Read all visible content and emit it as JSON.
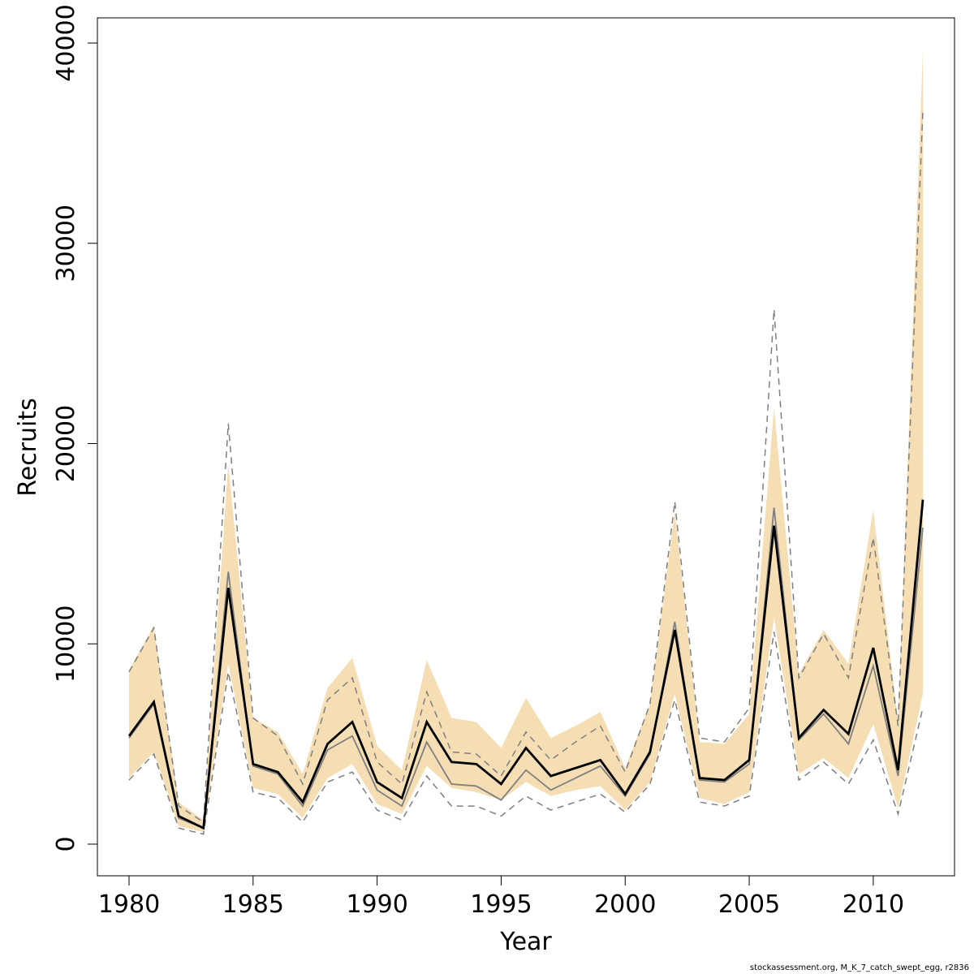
{
  "chart_data": {
    "type": "line",
    "xlabel": "Year",
    "ylabel": "Recruits",
    "xlim": [
      1979,
      2013.5
    ],
    "ylim": [
      -1600,
      41300
    ],
    "x_ticks": [
      1980,
      1985,
      1990,
      1995,
      2000,
      2005,
      2010
    ],
    "x_tick_labels": [
      "1980",
      "1985",
      "1990",
      "1995",
      "2000",
      "2005",
      "2010"
    ],
    "y_ticks": [
      0,
      10000,
      20000,
      30000,
      40000
    ],
    "y_tick_labels": [
      "0",
      "10000",
      "20000",
      "30000",
      "40000"
    ],
    "grid": false,
    "colors": {
      "band": "#f5deb3",
      "main_line": "#000000",
      "secondary_line": "#7f7f7f",
      "dashed_lines": "#7f7f7f",
      "frame": "#000000"
    },
    "x": [
      1980,
      1981,
      1982,
      1983,
      1984,
      1985,
      1986,
      1987,
      1988,
      1989,
      1990,
      1991,
      1992,
      1993,
      1994,
      1995,
      1996,
      1997,
      1998,
      1999,
      2000,
      2001,
      2002,
      2003,
      2004,
      2005,
      2006,
      2007,
      2008,
      2009,
      2010,
      2011,
      2012
    ],
    "series": [
      {
        "role": "band_upper",
        "values": [
          8700,
          10900,
          2100,
          1200,
          19000,
          6300,
          5600,
          3500,
          7800,
          9300,
          4900,
          3700,
          9200,
          6300,
          6100,
          4800,
          7300,
          5300,
          5900,
          6600,
          3800,
          7000,
          16600,
          5100,
          5000,
          6500,
          21800,
          8500,
          10700,
          9000,
          16700,
          6100,
          39600
        ]
      },
      {
        "role": "band_lower",
        "values": [
          3300,
          4600,
          900,
          600,
          9000,
          2800,
          2500,
          1300,
          3300,
          4000,
          2000,
          1500,
          3900,
          2800,
          2600,
          2200,
          3100,
          2400,
          2700,
          2900,
          1700,
          3100,
          7500,
          2300,
          2000,
          2600,
          11300,
          3500,
          4300,
          3300,
          6000,
          1800,
          7500
        ]
      },
      {
        "role": "dashed_upper",
        "values": [
          8600,
          10800,
          1900,
          1100,
          21000,
          6300,
          5400,
          3000,
          7200,
          8300,
          4100,
          3000,
          7600,
          4600,
          4500,
          3400,
          5600,
          4200,
          5100,
          5900,
          3600,
          7000,
          17100,
          5300,
          5100,
          6800,
          26700,
          8300,
          10500,
          8300,
          15300,
          5900,
          36600
        ]
      },
      {
        "role": "dashed_lower",
        "values": [
          3200,
          4500,
          800,
          500,
          8600,
          2600,
          2300,
          1100,
          3100,
          3600,
          1700,
          1200,
          3400,
          1900,
          1900,
          1400,
          2400,
          1700,
          2100,
          2500,
          1600,
          3000,
          7200,
          2100,
          1900,
          2400,
          10600,
          3200,
          4100,
          3000,
          5200,
          1500,
          6800
        ]
      },
      {
        "role": "secondary_line",
        "values": [
          5300,
          7000,
          1300,
          800,
          13600,
          3900,
          3500,
          1900,
          4700,
          5400,
          2700,
          1900,
          5100,
          3000,
          2900,
          2200,
          3700,
          2700,
          3300,
          3900,
          2400,
          4500,
          11100,
          3200,
          3100,
          4000,
          16800,
          5200,
          6500,
          5000,
          8900,
          3400,
          15800
        ]
      },
      {
        "role": "main_line",
        "values": [
          5400,
          7100,
          1400,
          800,
          12800,
          4000,
          3600,
          2100,
          5000,
          6100,
          3100,
          2300,
          6100,
          4100,
          4000,
          3000,
          4800,
          3400,
          3800,
          4200,
          2500,
          4600,
          10700,
          3300,
          3200,
          4200,
          15900,
          5300,
          6700,
          5500,
          9800,
          3700,
          17200
        ]
      }
    ]
  },
  "footer": {
    "credit": "stockassessment.org, M_K_7_catch_swept_egg, r2836"
  }
}
